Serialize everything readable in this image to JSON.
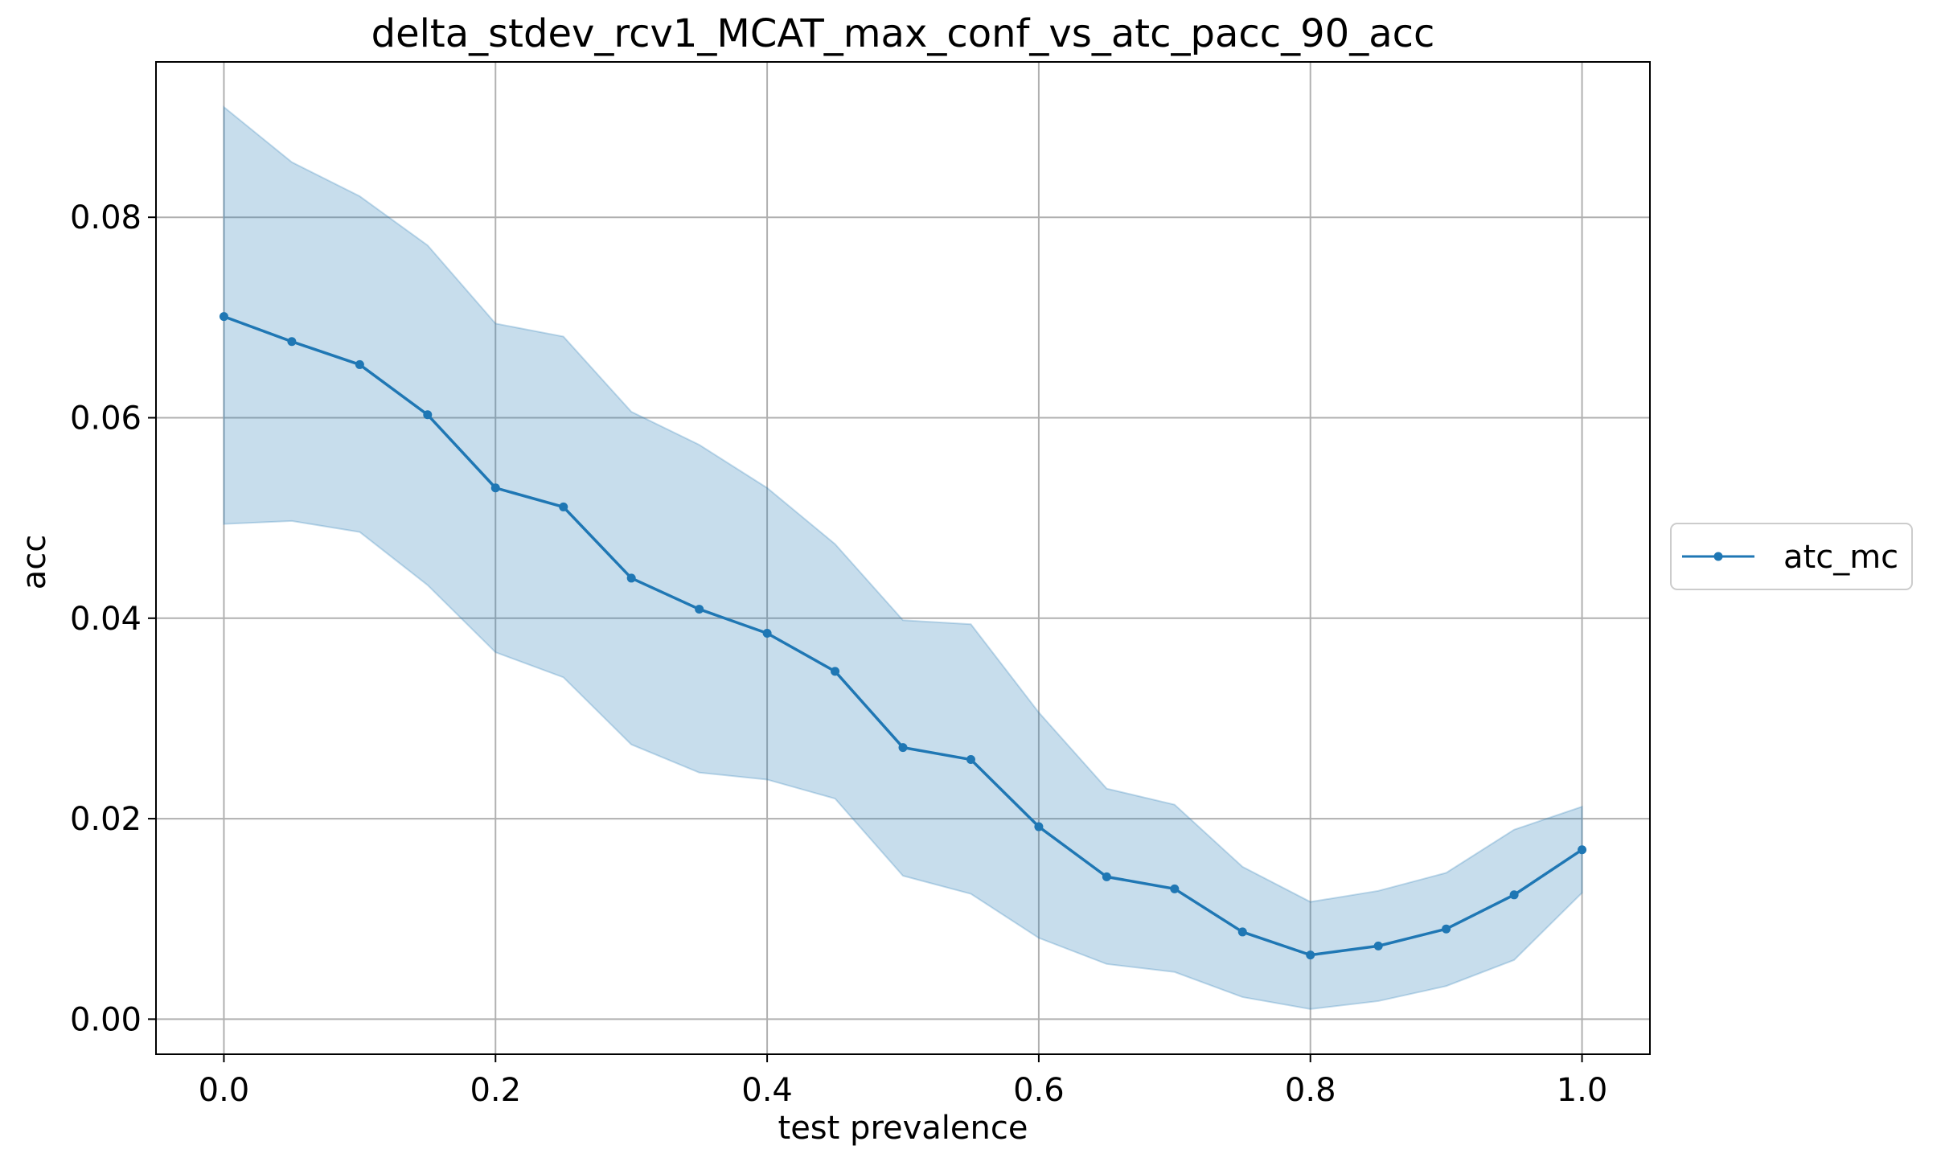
{
  "chart_data": {
    "type": "line",
    "title": "delta_stdev_rcv1_MCAT_max_conf_vs_atc_pacc_90_acc",
    "xlabel": "test prevalence",
    "ylabel": "acc",
    "xlim": [
      -0.05,
      1.05
    ],
    "ylim": [
      -0.0035,
      0.0955
    ],
    "xticks": [
      0.0,
      0.2,
      0.4,
      0.6,
      0.8,
      1.0
    ],
    "xtick_labels": [
      "0.0",
      "0.2",
      "0.4",
      "0.6",
      "0.8",
      "1.0"
    ],
    "yticks": [
      0.0,
      0.02,
      0.04,
      0.06,
      0.08
    ],
    "ytick_labels": [
      "0.00",
      "0.02",
      "0.04",
      "0.06",
      "0.08"
    ],
    "grid": true,
    "legend_position": "right, outside plot area",
    "x": [
      0.0,
      0.05,
      0.1,
      0.15,
      0.2,
      0.25,
      0.3,
      0.35,
      0.4,
      0.45,
      0.5,
      0.55,
      0.6,
      0.65,
      0.7,
      0.75,
      0.8,
      0.85,
      0.9,
      0.95,
      1.0
    ],
    "series": [
      {
        "name": "atc_mc",
        "color": "#1f77b4",
        "values": [
          0.0701,
          0.0676,
          0.0653,
          0.0603,
          0.053,
          0.0511,
          0.044,
          0.0409,
          0.0385,
          0.0347,
          0.0271,
          0.0259,
          0.0192,
          0.0142,
          0.013,
          0.0087,
          0.0064,
          0.0073,
          0.009,
          0.0124,
          0.0169
        ],
        "band_lower": [
          0.0494,
          0.0497,
          0.0486,
          0.0433,
          0.0366,
          0.0341,
          0.0274,
          0.0246,
          0.0239,
          0.022,
          0.0143,
          0.0125,
          0.0081,
          0.0055,
          0.0047,
          0.0022,
          0.001,
          0.0018,
          0.0033,
          0.0059,
          0.0126
        ],
        "band_upper": [
          0.091,
          0.0855,
          0.0821,
          0.0772,
          0.0694,
          0.0681,
          0.0606,
          0.0573,
          0.053,
          0.0474,
          0.0398,
          0.0394,
          0.0306,
          0.023,
          0.0214,
          0.0152,
          0.0117,
          0.0128,
          0.0146,
          0.0189,
          0.0212
        ]
      }
    ]
  }
}
